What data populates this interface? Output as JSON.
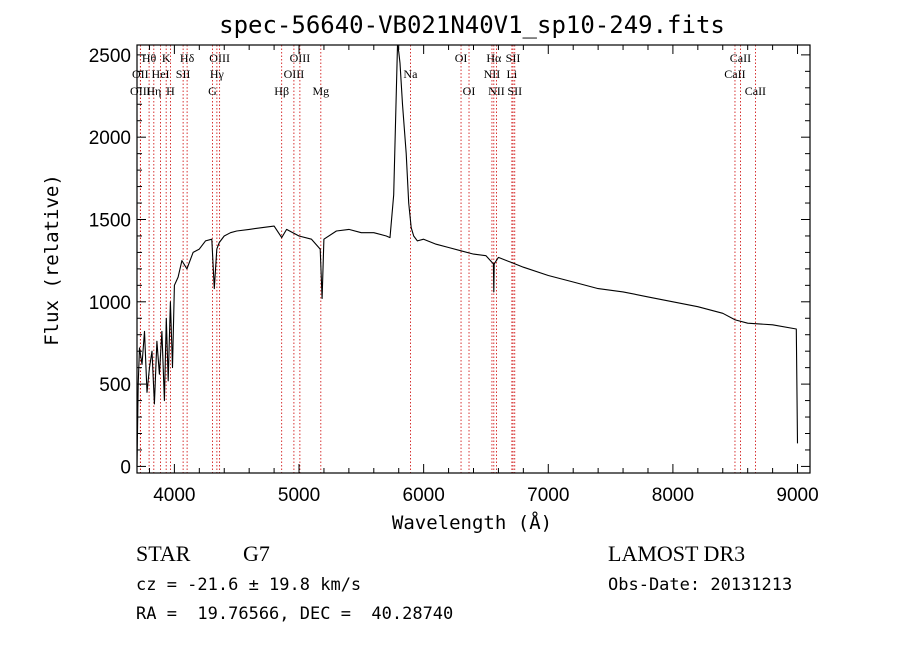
{
  "chart_data": {
    "type": "line",
    "title": "spec-56640-VB021N40V1_sp10-249.fits",
    "xlabel": "Wavelength (Å)",
    "ylabel": "Flux (relative)",
    "xlim": [
      3700,
      9100
    ],
    "ylim": [
      -40,
      2560
    ],
    "xticks": [
      4000,
      5000,
      6000,
      7000,
      8000,
      9000
    ],
    "yticks": [
      0,
      500,
      1000,
      1500,
      2000,
      2500
    ],
    "grid": false,
    "series": [
      {
        "name": "spectrum",
        "x": [
          3700,
          3710,
          3720,
          3740,
          3760,
          3780,
          3800,
          3820,
          3840,
          3860,
          3880,
          3900,
          3920,
          3935,
          3950,
          3968,
          3985,
          4000,
          4030,
          4060,
          4100,
          4150,
          4200,
          4250,
          4300,
          4320,
          4340,
          4360,
          4400,
          4450,
          4500,
          4600,
          4700,
          4800,
          4861,
          4900,
          5000,
          5100,
          5170,
          5185,
          5200,
          5300,
          5400,
          5500,
          5600,
          5700,
          5730,
          5760,
          5790,
          5800,
          5810,
          5830,
          5860,
          5880,
          5900,
          5920,
          5950,
          6000,
          6100,
          6200,
          6300,
          6400,
          6500,
          6560,
          6563,
          6566,
          6600,
          6700,
          6800,
          7000,
          7200,
          7400,
          7600,
          7800,
          8000,
          8200,
          8400,
          8500,
          8600,
          8800,
          8990,
          9000
        ],
        "y": [
          0,
          500,
          720,
          620,
          820,
          450,
          600,
          700,
          380,
          760,
          560,
          820,
          400,
          900,
          520,
          1000,
          600,
          1100,
          1150,
          1250,
          1200,
          1300,
          1320,
          1370,
          1380,
          1080,
          1320,
          1360,
          1400,
          1420,
          1430,
          1440,
          1450,
          1460,
          1390,
          1440,
          1400,
          1380,
          1320,
          1020,
          1380,
          1430,
          1440,
          1420,
          1420,
          1400,
          1390,
          1650,
          2560,
          2520,
          2450,
          2200,
          1900,
          1600,
          1450,
          1400,
          1370,
          1380,
          1350,
          1330,
          1310,
          1290,
          1280,
          1230,
          1060,
          1230,
          1270,
          1240,
          1210,
          1160,
          1120,
          1080,
          1060,
          1030,
          1000,
          970,
          930,
          890,
          870,
          860,
          835,
          140
        ]
      }
    ],
    "lines": [
      {
        "label": "Hθ",
        "x": 3797,
        "row": 1
      },
      {
        "label": "OII",
        "x": 3727,
        "row": 2
      },
      {
        "label": "OIII",
        "x": 3727,
        "row": 3
      },
      {
        "label": "Hη",
        "x": 3835,
        "row": 3
      },
      {
        "label": "HeI",
        "x": 3889,
        "row": 2
      },
      {
        "label": "K",
        "x": 3934,
        "row": 1
      },
      {
        "label": "H",
        "x": 3968,
        "row": 3
      },
      {
        "label": "SII",
        "x": 4070,
        "row": 2
      },
      {
        "label": "Hδ",
        "x": 4102,
        "row": 1
      },
      {
        "label": "OIII",
        "x": 4363,
        "row": 1
      },
      {
        "label": "Hγ",
        "x": 4341,
        "row": 2
      },
      {
        "label": "G",
        "x": 4305,
        "row": 3
      },
      {
        "label": "OIII",
        "x": 5007,
        "row": 1
      },
      {
        "label": "OIII",
        "x": 4959,
        "row": 2
      },
      {
        "label": "Hβ",
        "x": 4861,
        "row": 3
      },
      {
        "label": "Mg",
        "x": 5175,
        "row": 3
      },
      {
        "label": "Na",
        "x": 5894,
        "row": 2
      },
      {
        "label": "OI",
        "x": 6300,
        "row": 1
      },
      {
        "label": "OI",
        "x": 6364,
        "row": 3
      },
      {
        "label": "Hα",
        "x": 6563,
        "row": 1
      },
      {
        "label": "NII",
        "x": 6548,
        "row": 2
      },
      {
        "label": "NII",
        "x": 6584,
        "row": 3
      },
      {
        "label": "SII",
        "x": 6717,
        "row": 1
      },
      {
        "label": "Li",
        "x": 6708,
        "row": 2
      },
      {
        "label": "SII",
        "x": 6731,
        "row": 3
      },
      {
        "label": "CaII",
        "x": 8542,
        "row": 1
      },
      {
        "label": "CaII",
        "x": 8498,
        "row": 2
      },
      {
        "label": "CaII",
        "x": 8662,
        "row": 3
      }
    ]
  },
  "info": {
    "object_class": "STAR",
    "subclass": "G7",
    "survey": "LAMOST DR3",
    "cz": "cz = -21.6 ± 19.8 km/s",
    "obs_date": "Obs-Date: 20131213",
    "coords": "RA =  19.76566, DEC =  40.28740"
  },
  "colors": {
    "axis": "#000000",
    "spectrum": "#000000",
    "line_marker": "#cc0000",
    "background": "#ffffff"
  }
}
